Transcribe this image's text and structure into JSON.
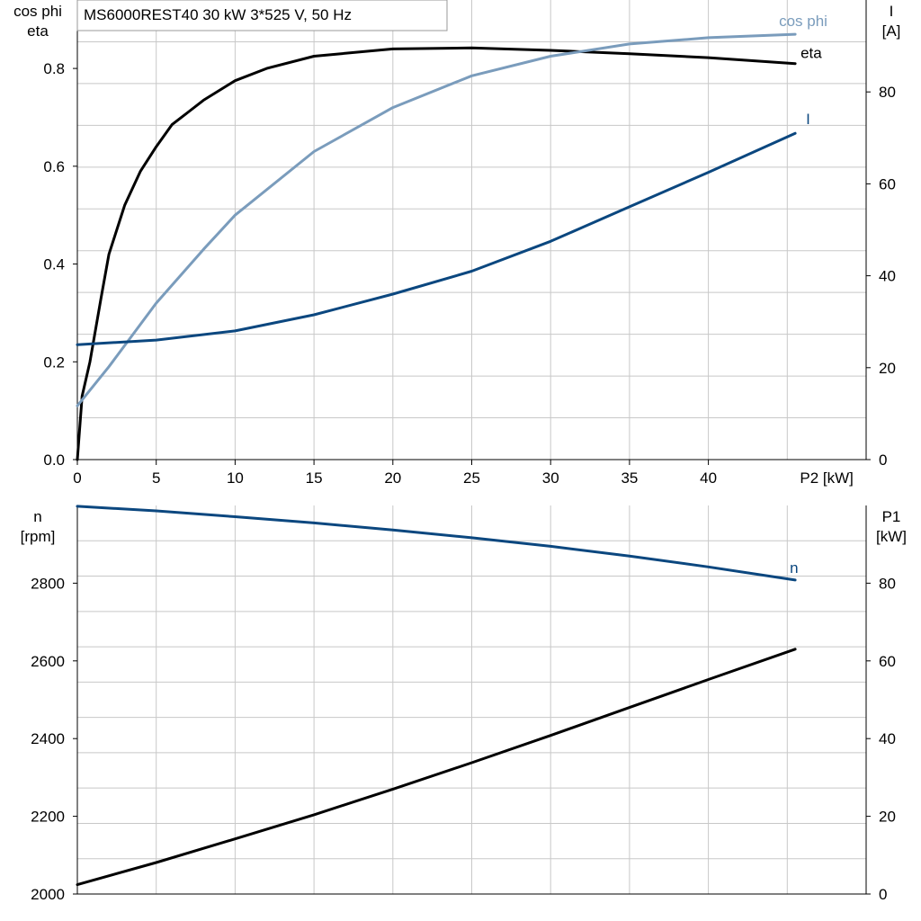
{
  "header": {
    "title": "MS6000REST40   30 kW   3*525 V, 50 Hz"
  },
  "chart_data": [
    {
      "type": "line",
      "name": "top",
      "xlabel": "P2 [kW]",
      "x_ticks": [
        "0",
        "5",
        "10",
        "15",
        "20",
        "25",
        "30",
        "35",
        "40"
      ],
      "xlim": [
        0,
        50
      ],
      "grid": true,
      "left_axis": {
        "label_lines": [
          "cos phi",
          "eta"
        ],
        "ylim": [
          0,
          0.94
        ],
        "ticks": [
          "0.0",
          "0.2",
          "0.4",
          "0.6",
          "0.8"
        ]
      },
      "right_axis": {
        "label_lines": [
          "I",
          "[A]"
        ],
        "ylim": [
          0,
          100
        ],
        "ticks": [
          "0",
          "20",
          "40",
          "60",
          "80"
        ]
      },
      "series": [
        {
          "name": "eta",
          "axis": "left",
          "color": "#000000",
          "x": [
            0,
            0.3,
            0.8,
            1.5,
            2,
            3,
            4,
            5,
            6,
            7,
            8,
            10,
            12,
            15,
            20,
            25,
            30,
            35,
            40,
            45.5
          ],
          "y": [
            0,
            0.13,
            0.2,
            0.33,
            0.42,
            0.52,
            0.59,
            0.64,
            0.685,
            0.71,
            0.735,
            0.775,
            0.8,
            0.825,
            0.84,
            0.842,
            0.837,
            0.83,
            0.822,
            0.81
          ]
        },
        {
          "name": "cos phi",
          "axis": "left",
          "color": "#7a9cbc",
          "x": [
            0,
            2,
            5,
            8,
            10,
            15,
            20,
            25,
            30,
            35,
            40,
            45.5
          ],
          "y": [
            0.11,
            0.19,
            0.32,
            0.43,
            0.5,
            0.63,
            0.72,
            0.785,
            0.825,
            0.85,
            0.863,
            0.87
          ]
        },
        {
          "name": "I",
          "axis": "right",
          "color": "#0b477f",
          "x": [
            0,
            5,
            10,
            15,
            20,
            25,
            30,
            35,
            40,
            45.5
          ],
          "y": [
            25,
            26,
            28,
            31.5,
            36,
            41,
            47.5,
            55,
            62.5,
            71
          ]
        }
      ]
    },
    {
      "type": "line",
      "name": "bottom",
      "xlim": [
        0,
        50
      ],
      "grid": true,
      "left_axis": {
        "label_lines": [
          "n",
          "[rpm]"
        ],
        "ylim": [
          2000,
          3000
        ],
        "ticks": [
          "2000",
          "2200",
          "2400",
          "2600",
          "2800"
        ]
      },
      "right_axis": {
        "label_lines": [
          "P1",
          "[kW]"
        ],
        "ylim": [
          0,
          100
        ],
        "ticks": [
          "0",
          "20",
          "40",
          "60",
          "80"
        ]
      },
      "series": [
        {
          "name": "n",
          "axis": "left",
          "color": "#0b477f",
          "x": [
            0,
            5,
            10,
            15,
            20,
            25,
            30,
            35,
            40,
            45.5
          ],
          "y": [
            2998,
            2986,
            2971,
            2955,
            2937,
            2917,
            2895,
            2870,
            2842,
            2808
          ]
        },
        {
          "name": "",
          "axis": "right",
          "color": "#000000",
          "x": [
            0,
            5,
            10,
            15,
            20,
            25,
            30,
            35,
            40,
            45.5
          ],
          "y": [
            2.4,
            8.1,
            14.2,
            20.4,
            27,
            33.8,
            40.8,
            48,
            55.2,
            63
          ]
        }
      ]
    }
  ]
}
